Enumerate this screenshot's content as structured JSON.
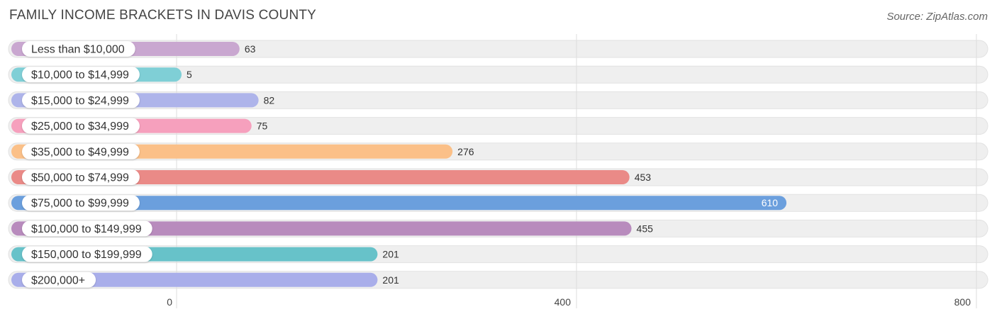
{
  "chart_data": {
    "type": "bar",
    "orientation": "horizontal",
    "title": "FAMILY INCOME BRACKETS IN DAVIS COUNTY",
    "source": "Source: ZipAtlas.com",
    "categories": [
      "Less than $10,000",
      "$10,000 to $14,999",
      "$15,000 to $24,999",
      "$25,000 to $34,999",
      "$35,000 to $49,999",
      "$50,000 to $74,999",
      "$75,000 to $99,999",
      "$100,000 to $149,999",
      "$150,000 to $199,999",
      "$200,000+"
    ],
    "values": [
      63,
      5,
      82,
      75,
      276,
      453,
      610,
      455,
      201,
      201
    ],
    "colors": [
      "#c9a7d0",
      "#7fcfd6",
      "#aeb4ea",
      "#f6a0bd",
      "#fbc088",
      "#ea8a87",
      "#6b9fdd",
      "#b88bbd",
      "#67c2c9",
      "#a9aeea"
    ],
    "xlim": [
      0,
      800
    ],
    "xticks": [
      0,
      400,
      800
    ],
    "xlabel": "",
    "ylabel": "",
    "grid": true
  }
}
